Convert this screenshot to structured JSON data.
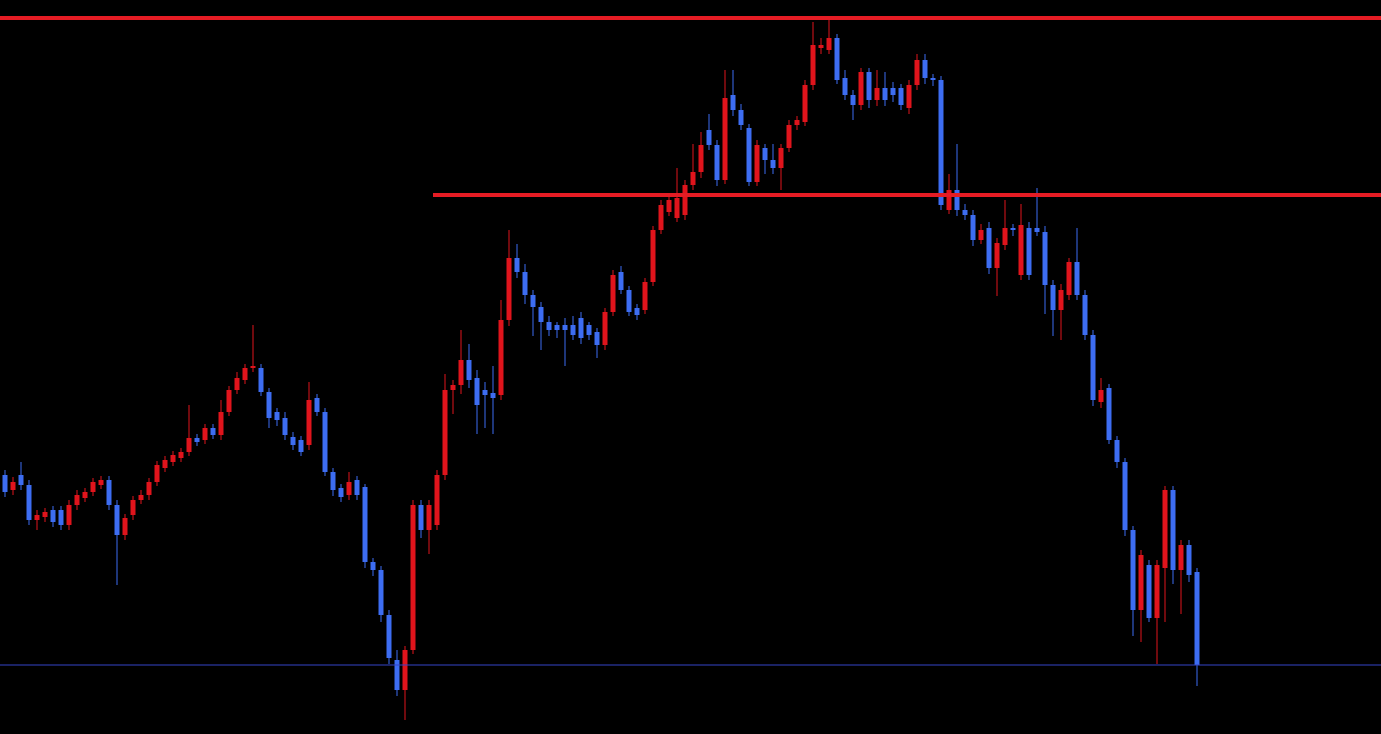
{
  "chart_data": {
    "type": "candlestick",
    "categories": [
      null,
      null,
      null,
      null,
      null,
      null,
      null,
      null,
      null,
      null,
      null,
      null,
      null,
      null,
      null,
      null,
      null,
      null,
      null,
      null,
      null,
      null,
      null,
      null,
      null,
      null,
      null,
      null,
      null,
      null,
      null,
      null,
      null,
      null,
      null,
      null,
      null,
      null,
      null,
      null,
      null,
      null,
      null,
      null,
      null,
      null,
      null,
      null,
      null,
      null,
      null,
      null,
      null,
      null,
      null,
      null,
      null,
      null,
      null,
      null,
      null,
      null,
      null,
      null,
      null,
      null,
      null,
      null,
      null,
      null,
      null,
      null,
      null,
      null,
      null,
      null,
      null,
      null,
      null,
      null,
      null,
      null,
      null,
      null,
      null,
      null,
      null,
      null,
      null,
      null,
      null,
      null,
      null,
      null,
      null,
      null,
      null,
      null,
      null,
      null,
      null,
      null,
      null,
      null,
      null,
      null,
      null,
      null,
      null,
      null,
      null,
      null,
      null,
      null,
      null,
      null,
      null,
      null,
      null,
      null,
      null,
      null,
      null,
      null,
      null,
      null,
      null,
      null,
      null,
      null,
      null,
      null,
      null,
      null,
      null,
      null,
      null,
      null,
      null,
      null,
      null,
      null,
      null,
      null,
      null,
      null,
      null,
      null,
      null,
      null
    ],
    "open": [
      259,
      244,
      259,
      249,
      214,
      217,
      224,
      224,
      209,
      229,
      236,
      242,
      249,
      254,
      229,
      199,
      219,
      234,
      239,
      252,
      266,
      272,
      276,
      282,
      296,
      294,
      306,
      299,
      322,
      344,
      354,
      366,
      366,
      342,
      322,
      316,
      297,
      294,
      289,
      336,
      322,
      262,
      246,
      239,
      254,
      247,
      172,
      164,
      119,
      74,
      44,
      84,
      229,
      204,
      209,
      259,
      344,
      349,
      374,
      356,
      344,
      341,
      339,
      414,
      476,
      462,
      439,
      427,
      412,
      409,
      409,
      409,
      416,
      409,
      402,
      389,
      422,
      462,
      444,
      426,
      424,
      452,
      504,
      522,
      516,
      519,
      549,
      562,
      604,
      589,
      554,
      639,
      624,
      606,
      552,
      586,
      574,
      566,
      586,
      609,
      612,
      649,
      686,
      684,
      696,
      656,
      639,
      629,
      662,
      634,
      646,
      646,
      646,
      626,
      649,
      674,
      656,
      654,
      524,
      544,
      524,
      519,
      494,
      506,
      466,
      489,
      506,
      459,
      506,
      506,
      502,
      449,
      424,
      439,
      472,
      439,
      399,
      332,
      346,
      294,
      272,
      204,
      124,
      169,
      116,
      166,
      244,
      164,
      189,
      162
    ],
    "high": [
      264,
      257,
      272,
      254,
      224,
      226,
      228,
      228,
      234,
      244,
      246,
      256,
      258,
      258,
      234,
      220,
      238,
      244,
      256,
      273,
      278,
      283,
      286,
      329,
      300,
      310,
      310,
      334,
      348,
      362,
      370,
      409,
      370,
      346,
      326,
      322,
      302,
      298,
      352,
      340,
      326,
      266,
      250,
      262,
      258,
      250,
      176,
      168,
      124,
      84,
      88,
      234,
      234,
      234,
      264,
      360,
      354,
      404,
      390,
      364,
      352,
      368,
      434,
      504,
      490,
      470,
      444,
      432,
      418,
      412,
      416,
      418,
      422,
      412,
      406,
      426,
      464,
      468,
      448,
      430,
      456,
      508,
      534,
      540,
      566,
      554,
      590,
      602,
      620,
      594,
      664,
      664,
      630,
      610,
      594,
      590,
      590,
      590,
      614,
      618,
      654,
      712,
      696,
      714,
      700,
      664,
      644,
      666,
      666,
      664,
      662,
      652,
      650,
      654,
      680,
      680,
      660,
      658,
      560,
      590,
      530,
      524,
      510,
      512,
      496,
      534,
      510,
      530,
      512,
      546,
      508,
      454,
      450,
      476,
      506,
      444,
      404,
      356,
      350,
      298,
      276,
      208,
      184,
      174,
      174,
      248,
      248,
      194,
      194,
      166
    ],
    "low": [
      237,
      239,
      244,
      209,
      204,
      212,
      207,
      204,
      204,
      224,
      232,
      238,
      245,
      224,
      149,
      194,
      214,
      230,
      234,
      248,
      262,
      268,
      272,
      278,
      288,
      290,
      295,
      294,
      318,
      340,
      350,
      362,
      338,
      306,
      308,
      294,
      284,
      278,
      284,
      318,
      258,
      238,
      232,
      234,
      234,
      166,
      158,
      112,
      70,
      38,
      14,
      80,
      196,
      180,
      204,
      254,
      320,
      340,
      346,
      300,
      306,
      300,
      334,
      408,
      456,
      430,
      398,
      384,
      398,
      396,
      368,
      394,
      390,
      394,
      376,
      384,
      418,
      440,
      418,
      414,
      420,
      448,
      500,
      518,
      512,
      514,
      544,
      556,
      584,
      548,
      550,
      618,
      604,
      548,
      548,
      560,
      560,
      544,
      582,
      604,
      608,
      644,
      680,
      680,
      650,
      634,
      614,
      624,
      626,
      628,
      628,
      632,
      624,
      620,
      644,
      650,
      648,
      524,
      520,
      518,
      514,
      488,
      490,
      460,
      438,
      484,
      498,
      454,
      454,
      498,
      420,
      398,
      394,
      434,
      434,
      394,
      328,
      326,
      290,
      266,
      198,
      98,
      92,
      112,
      70,
      112,
      150,
      120,
      152,
      48
    ],
    "close": [
      242,
      252,
      249,
      214,
      219,
      222,
      212,
      209,
      229,
      239,
      242,
      252,
      254,
      229,
      199,
      216,
      234,
      239,
      252,
      269,
      274,
      279,
      282,
      296,
      292,
      306,
      299,
      322,
      344,
      356,
      366,
      368,
      342,
      316,
      314,
      299,
      289,
      282,
      334,
      322,
      262,
      244,
      237,
      252,
      239,
      172,
      164,
      119,
      76,
      44,
      84,
      229,
      204,
      229,
      259,
      344,
      349,
      374,
      354,
      329,
      339,
      336,
      414,
      476,
      462,
      439,
      427,
      412,
      404,
      404,
      404,
      399,
      396,
      399,
      389,
      422,
      459,
      444,
      422,
      419,
      452,
      504,
      529,
      534,
      536,
      549,
      562,
      589,
      589,
      554,
      636,
      624,
      609,
      552,
      589,
      574,
      566,
      586,
      609,
      614,
      649,
      689,
      689,
      696,
      654,
      639,
      629,
      662,
      634,
      646,
      634,
      639,
      629,
      649,
      674,
      656,
      654,
      529,
      544,
      524,
      519,
      494,
      504,
      466,
      491,
      506,
      504,
      509,
      459,
      502,
      449,
      424,
      444,
      472,
      439,
      399,
      334,
      344,
      294,
      272,
      204,
      124,
      179,
      116,
      169,
      244,
      164,
      189,
      159,
      69
    ],
    "up_color": "#e0141c",
    "down_color": "#3d6df2",
    "ylim": [
      0,
      734
    ],
    "hlines": [
      {
        "value": 716,
        "color": "#e51c24",
        "from_index": 0
      },
      {
        "value": 539,
        "color": "#e51c24",
        "from_index": 54
      },
      {
        "value": 69,
        "color": "#3344c8",
        "from_index": 0
      }
    ]
  }
}
